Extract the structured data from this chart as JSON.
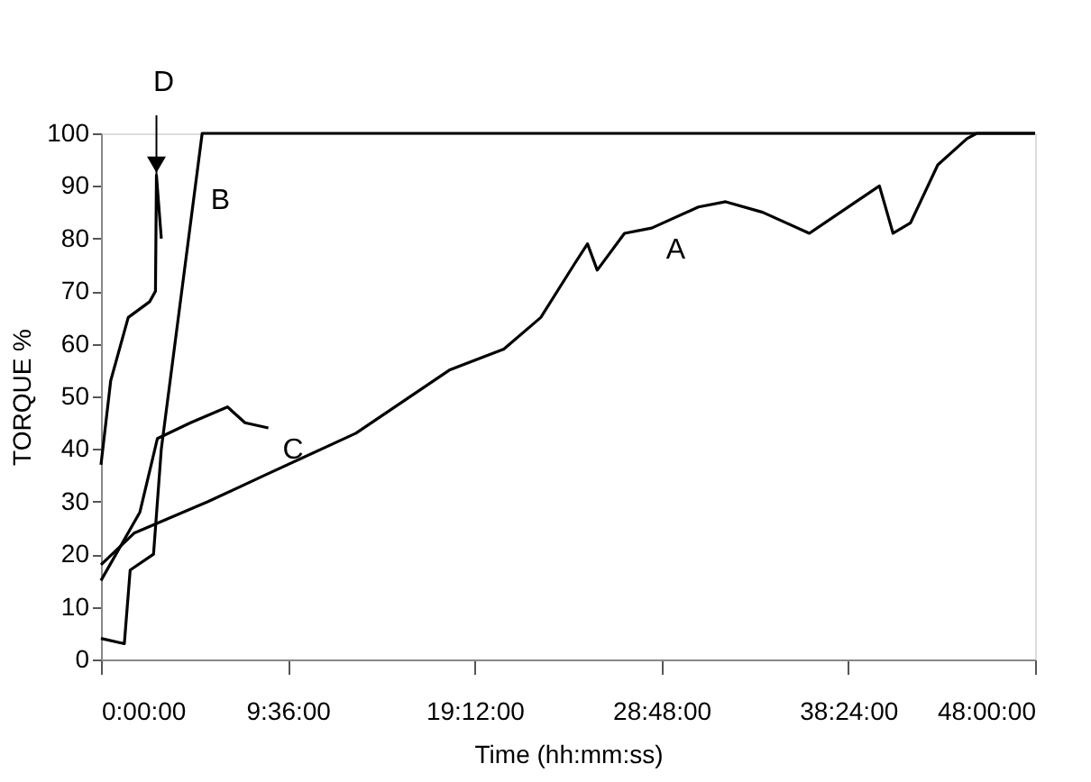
{
  "chart_data": {
    "type": "line",
    "xlabel": "Time (hh:mm:ss)",
    "ylabel": "TORQUE %",
    "xlim": [
      0,
      48
    ],
    "ylim": [
      0,
      100
    ],
    "xticks": [
      {
        "value": 0,
        "label": "0:00:00"
      },
      {
        "value": 9.6,
        "label": "9:36:00"
      },
      {
        "value": 19.2,
        "label": "19:12:00"
      },
      {
        "value": 28.8,
        "label": "28:48:00"
      },
      {
        "value": 38.4,
        "label": "38:24:00"
      },
      {
        "value": 48,
        "label": "48:00:00"
      }
    ],
    "yticks": [
      0,
      10,
      20,
      30,
      40,
      50,
      60,
      70,
      80,
      90,
      100
    ],
    "grid": false,
    "legend": false,
    "marker": "none",
    "line_style": "solid",
    "series": [
      {
        "color": "#000000",
        "x": [
          0,
          1.7,
          3.6,
          5.5,
          8.4,
          13.1,
          17.9,
          20.7,
          22.6,
          24.3,
          25,
          25.5,
          26.9,
          28.3,
          30.7,
          32.1,
          34,
          36.4,
          38.8,
          40,
          40.7,
          41.6,
          43,
          44.5,
          45,
          48
        ],
        "values": [
          18,
          24,
          27,
          30,
          35,
          43,
          55,
          59,
          65,
          75,
          79,
          74,
          81,
          82,
          86,
          87,
          85,
          81,
          87,
          90,
          81,
          83,
          94,
          99,
          100,
          100
        ]
      },
      {
        "color": "#000000",
        "x": [
          0,
          1.2,
          1.5,
          2.7,
          3.1,
          5.2,
          48
        ],
        "values": [
          4,
          3,
          17,
          20,
          40,
          100,
          100
        ]
      },
      {
        "color": "#000000",
        "x": [
          0,
          2,
          2.9,
          4.6,
          6.5,
          7.4,
          8.6
        ],
        "values": [
          15,
          28,
          42,
          45,
          48,
          45,
          44
        ]
      },
      {
        "color": "#000000",
        "x": [
          0,
          0.5,
          1.4,
          2.5,
          2.8,
          2.85,
          3.1
        ],
        "values": [
          37,
          53,
          65,
          68,
          70,
          92,
          80
        ]
      }
    ],
    "annotations": [
      {
        "text": "A",
        "x": 28.3,
        "y": 82
      },
      {
        "text": "B",
        "x": 4.9,
        "y": 91.4
      },
      {
        "text": "C",
        "x": 8.6,
        "y": 44
      },
      {
        "text": "D",
        "x": 2.85,
        "y": 92
      }
    ]
  }
}
